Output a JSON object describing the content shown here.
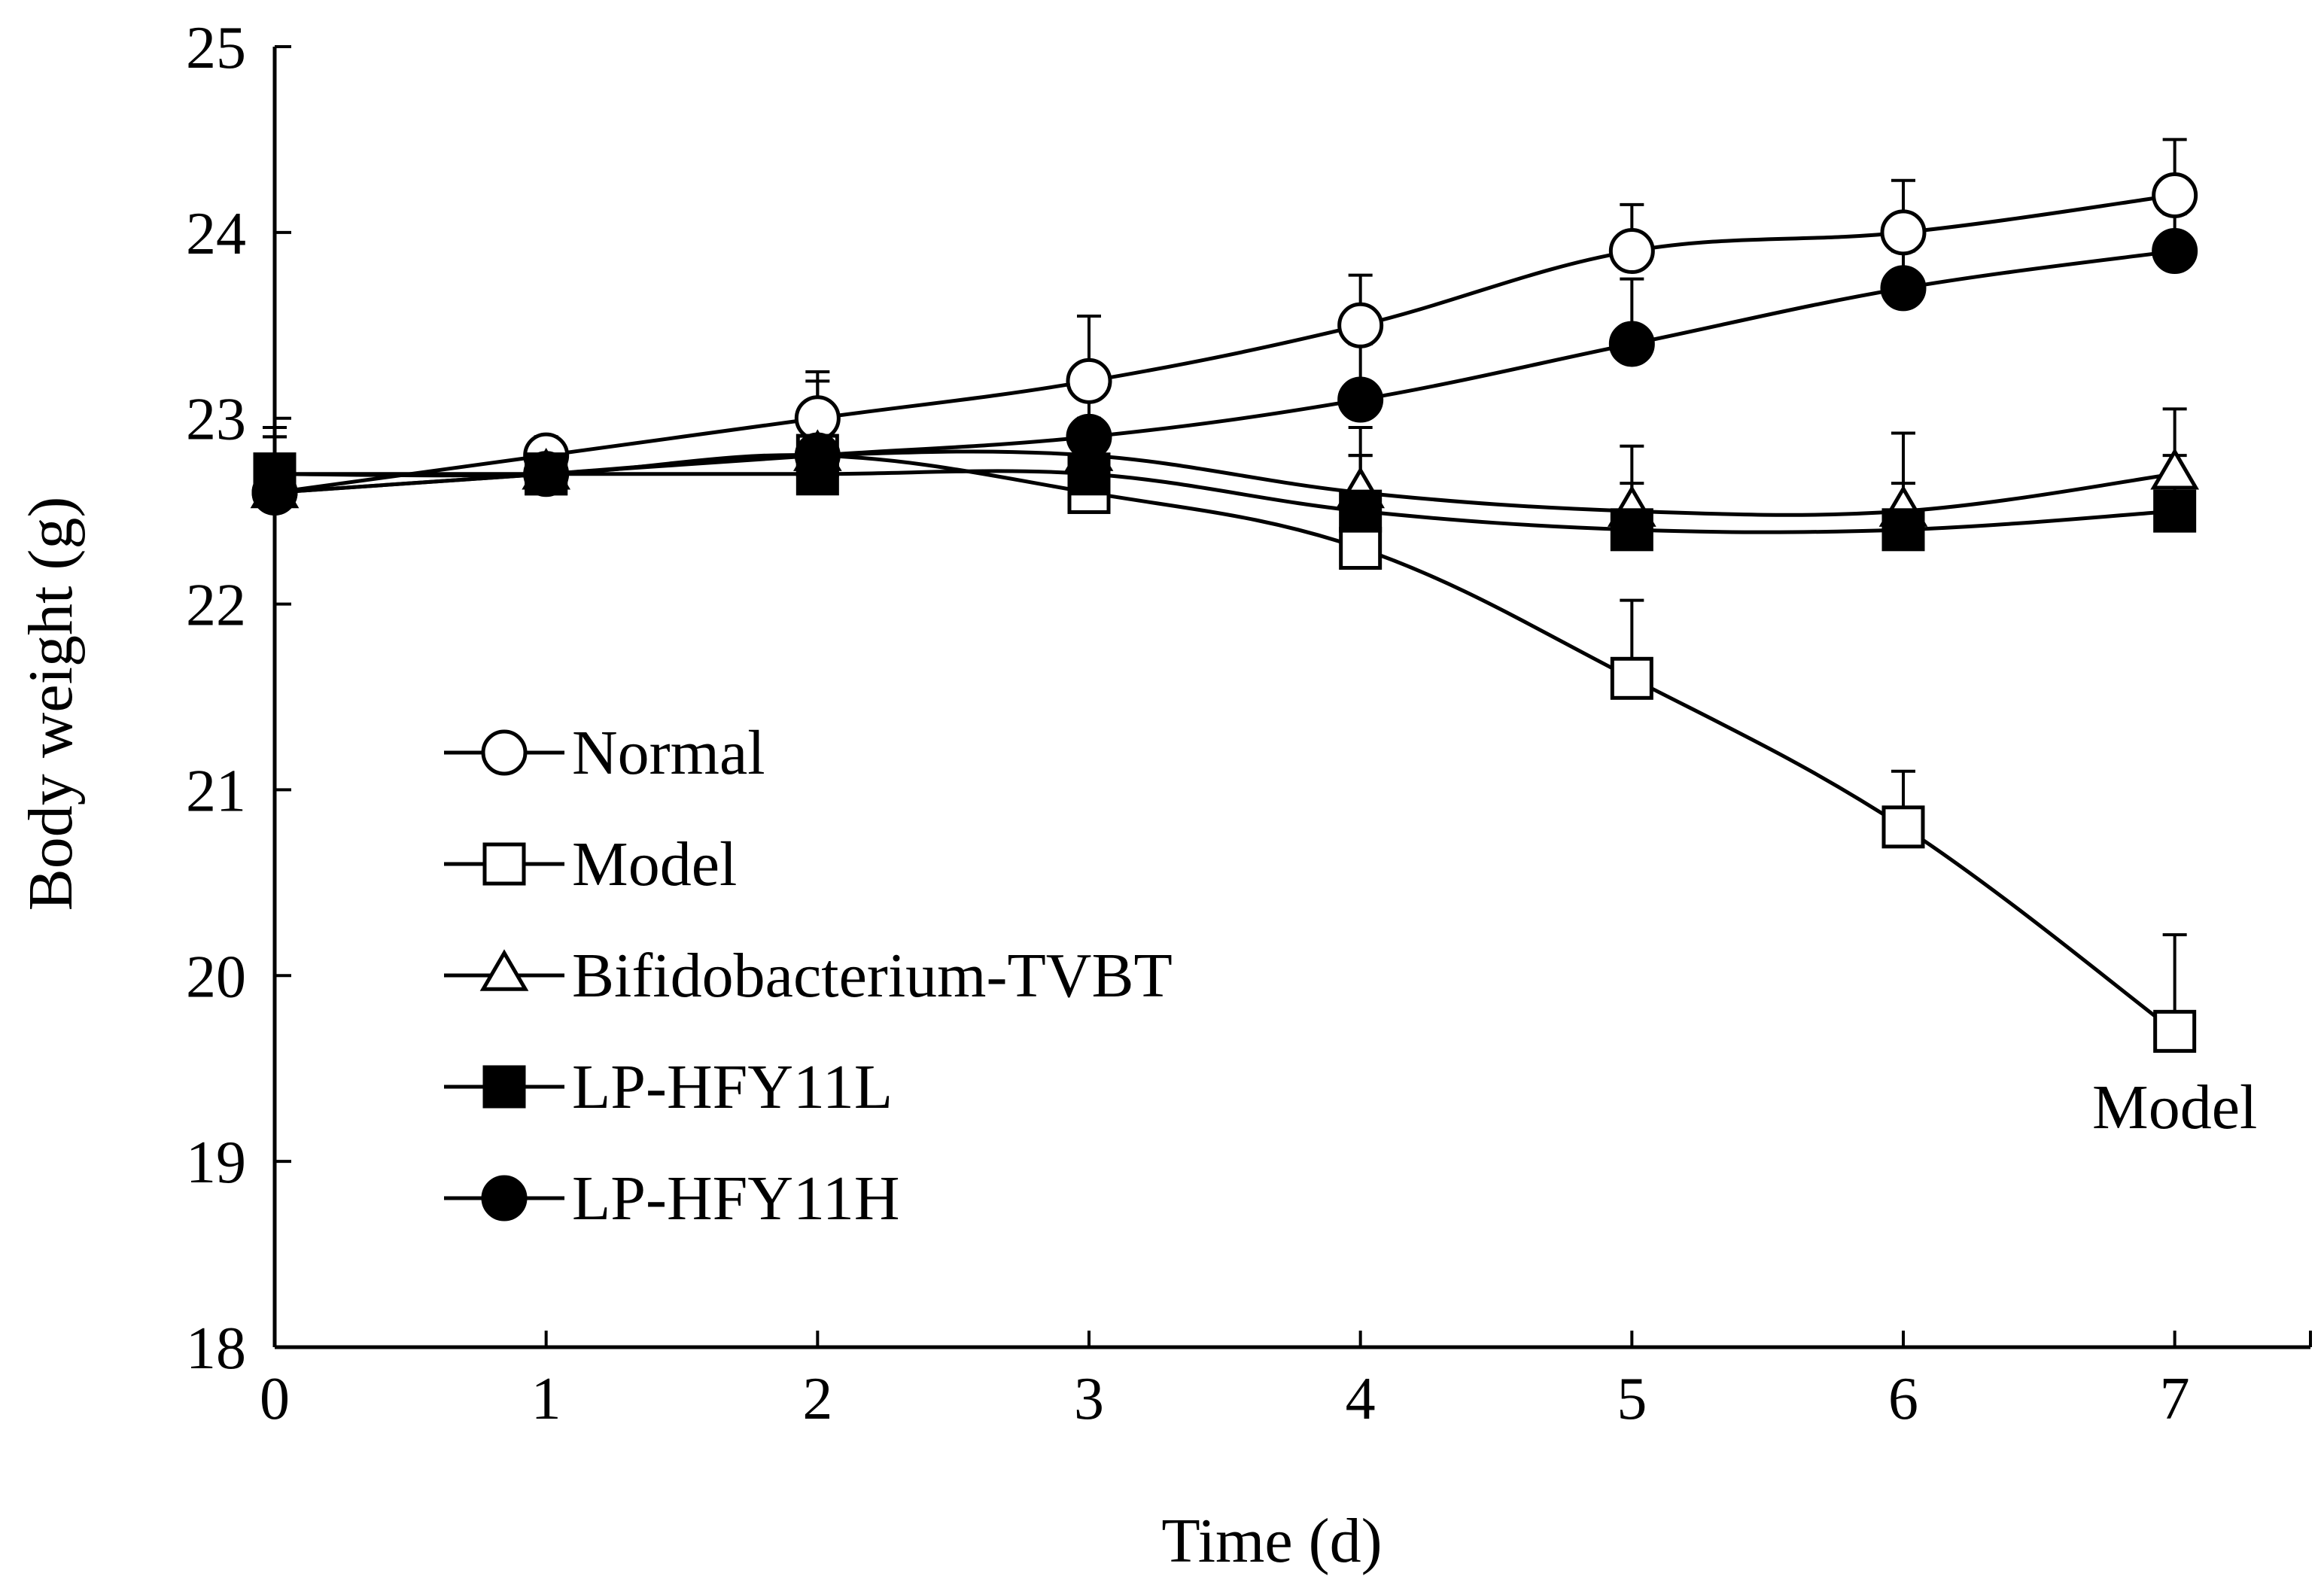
{
  "chart_data": {
    "type": "line",
    "title": "",
    "xlabel": "Time (d)",
    "ylabel": "Body weight (g)",
    "x": [
      0,
      1,
      2,
      3,
      4,
      5,
      6,
      7
    ],
    "xlim": [
      0,
      7.5
    ],
    "ylim": [
      18,
      25
    ],
    "xticks": [
      "0",
      "1",
      "2",
      "3",
      "4",
      "5",
      "6",
      "7"
    ],
    "yticks": [
      "18",
      "19",
      "20",
      "21",
      "22",
      "23",
      "24",
      "25"
    ],
    "grid": false,
    "legend_position": "middle-left",
    "series": [
      {
        "name": "Normal",
        "marker": "circle",
        "fill": "open",
        "values": [
          22.6,
          22.8,
          23.0,
          23.2,
          23.5,
          23.9,
          24.0,
          24.2
        ],
        "errors": [
          0.2,
          0.1,
          0.25,
          0.35,
          0.27,
          0.25,
          0.28,
          0.3
        ]
      },
      {
        "name": "Model",
        "marker": "square",
        "fill": "open",
        "values": [
          22.7,
          22.7,
          22.8,
          22.6,
          22.3,
          21.6,
          20.8,
          19.7
        ],
        "errors": [
          0.25,
          0.2,
          0.2,
          0.25,
          0.5,
          0.42,
          0.3,
          0.52
        ]
      },
      {
        "name": "Bifidobacterium-TVBT",
        "marker": "triangle",
        "fill": "open",
        "values": [
          22.6,
          22.7,
          22.8,
          22.8,
          22.6,
          22.5,
          22.5,
          22.7
        ],
        "errors": [
          0.3,
          0.15,
          0.2,
          0.2,
          0.35,
          0.35,
          0.42,
          0.35
        ]
      },
      {
        "name": "LP-HFY11L",
        "marker": "square",
        "fill": "filled",
        "values": [
          22.7,
          22.7,
          22.7,
          22.7,
          22.5,
          22.4,
          22.4,
          22.5
        ],
        "errors": [
          0.2,
          0.15,
          0.15,
          0.2,
          0.3,
          0.25,
          0.25,
          0.3
        ]
      },
      {
        "name": "LP-HFY11H",
        "marker": "circle",
        "fill": "filled",
        "values": [
          22.6,
          22.7,
          22.8,
          22.9,
          23.1,
          23.4,
          23.7,
          23.9
        ],
        "errors": [
          0.35,
          0.15,
          0.4,
          0.3,
          0.3,
          0.35,
          0.2,
          0.2
        ]
      }
    ],
    "annotations": [
      {
        "text": "Model",
        "x": 7,
        "y": 19.3
      }
    ]
  }
}
